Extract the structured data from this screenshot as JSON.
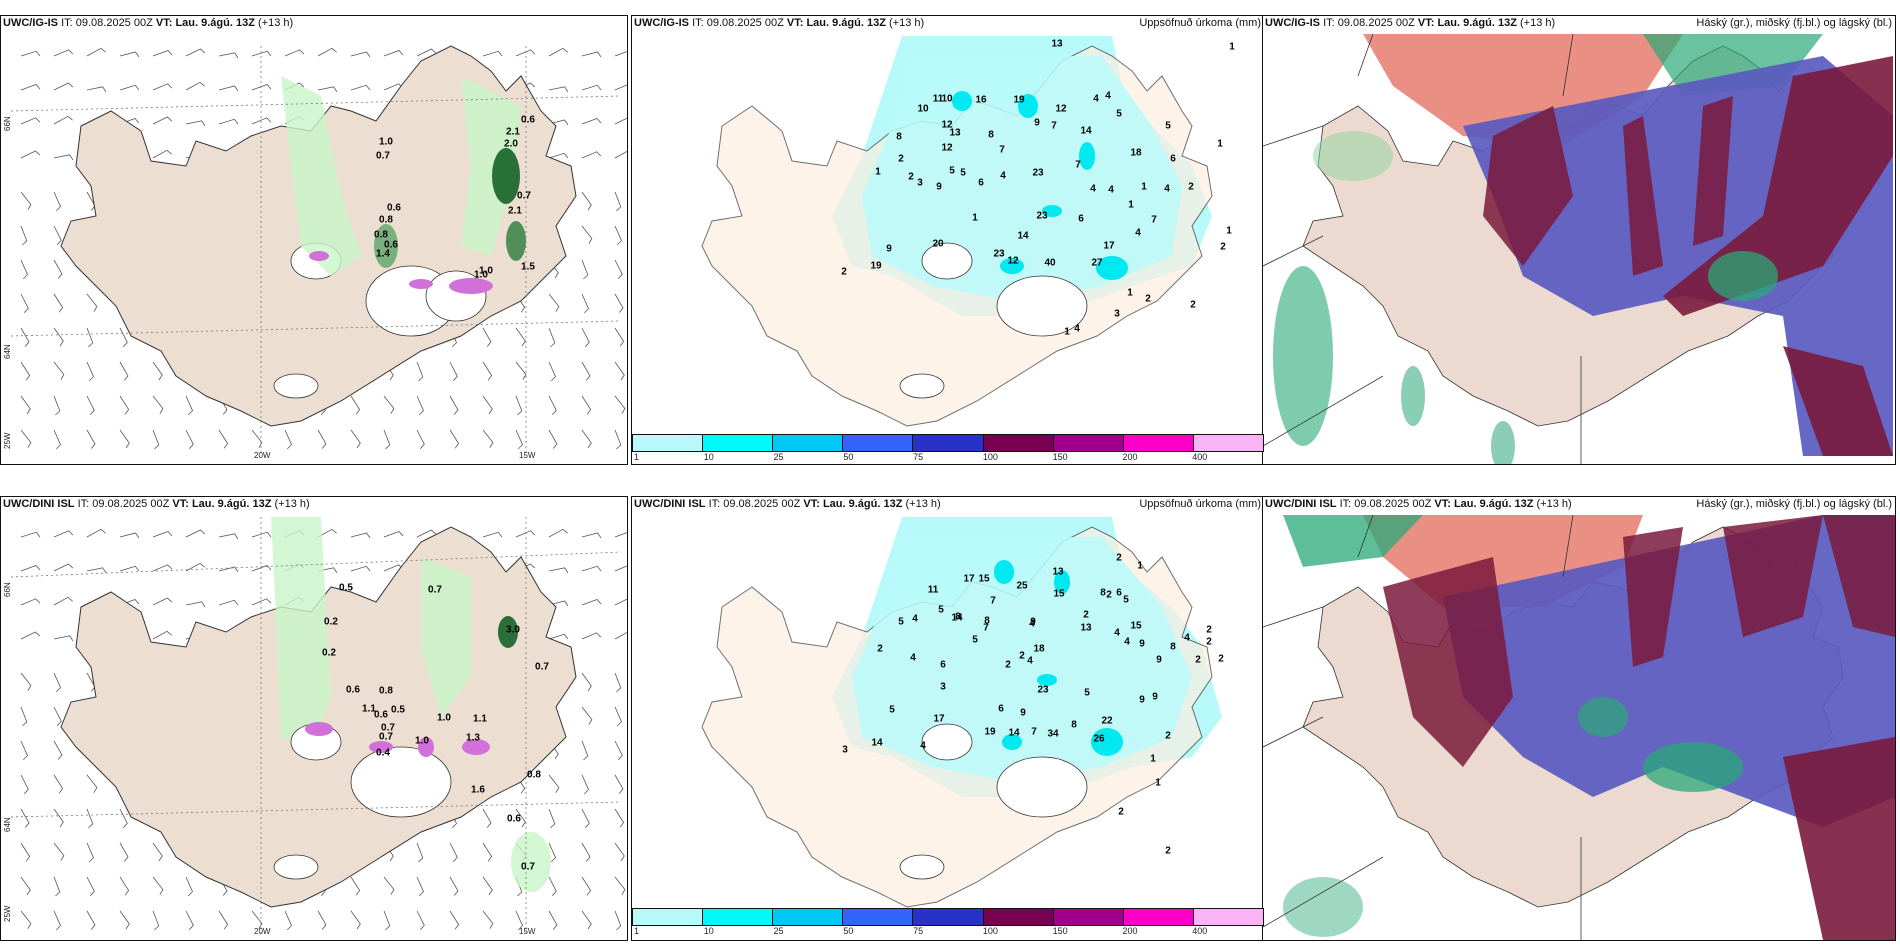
{
  "panels": [
    {
      "id": "ig-wind",
      "model": "UWC/IG-IS",
      "it_label": "IT:",
      "it_value": "09.08.2025 00Z",
      "vt_label": "VT:",
      "vt_value": "Lau. 9.ágú. 13Z",
      "lead": "(+13 h)",
      "right_title": "",
      "lat_labels": [
        "66N",
        "64N"
      ],
      "lon_labels": [
        "25W",
        "20W",
        "15W"
      ],
      "values": [
        "1.0",
        "0.7",
        "0.6",
        "2.1",
        "2.0",
        "0.6",
        "0.8",
        "0.8",
        "0.6",
        "1.4",
        "1.0",
        "0.7",
        "2.1",
        "1.5",
        "1.0"
      ]
    },
    {
      "id": "ig-precip",
      "model": "UWC/IG-IS",
      "it_label": "IT:",
      "it_value": "09.08.2025 00Z",
      "vt_label": "VT:",
      "vt_value": "Lau. 9.ágú. 13Z",
      "lead": "(+13 h)",
      "right_title": "Uppsöfnuð úrkoma (mm)",
      "values": [
        "13",
        "16",
        "19",
        "11",
        "10",
        "10",
        "12",
        "13",
        "12",
        "8",
        "8",
        "9",
        "7",
        "12",
        "14",
        "4",
        "4",
        "5",
        "2",
        "1",
        "2",
        "3",
        "5",
        "5",
        "6",
        "9",
        "4",
        "7",
        "23",
        "18",
        "7",
        "6",
        "4",
        "4",
        "1",
        "1",
        "4",
        "2",
        "5",
        "23",
        "6",
        "1",
        "1",
        "4",
        "7",
        "1",
        "2",
        "20",
        "14",
        "9",
        "19",
        "2",
        "23",
        "12",
        "40",
        "17",
        "27",
        "1",
        "2",
        "3",
        "4",
        "1",
        "1",
        "2"
      ],
      "colorbar": {
        "ticks": [
          "1",
          "10",
          "25",
          "50",
          "75",
          "100",
          "150",
          "200",
          "400"
        ],
        "colors": [
          "#b8fafa",
          "#00fafa",
          "#00c8f5",
          "#3264fa",
          "#2832c8",
          "#780050",
          "#a0008c",
          "#ff00c8",
          "#fab4f5"
        ]
      }
    },
    {
      "id": "ig-clouds",
      "model": "UWC/IG-IS",
      "it_label": "IT:",
      "it_value": "09.08.2025 00Z",
      "vt_label": "VT:",
      "vt_value": "Lau. 9.ágú. 13Z",
      "lead": "(+13 h)",
      "right_title": "Háský (gr.), miðský (fj.bl.) og lágský (bl.)"
    },
    {
      "id": "dini-wind",
      "model": "UWC/DINI ISL",
      "it_label": "IT:",
      "it_value": "09.08.2025 00Z",
      "vt_label": "VT:",
      "vt_value": "Lau. 9.ágú. 13Z",
      "lead": "(+13 h)",
      "right_title": "",
      "lat_labels": [
        "66N",
        "64N"
      ],
      "lon_labels": [
        "25W",
        "20W",
        "15W"
      ],
      "values": [
        "0.5",
        "0.7",
        "0.2",
        "0.2",
        "0.6",
        "0.8",
        "0.6",
        "1.1",
        "0.5",
        "0.7",
        "0.7",
        "1.0",
        "1.1",
        "1.3",
        "0.4",
        "1.0",
        "3.0",
        "0.7",
        "0.8",
        "1.6",
        "0.6",
        "0.7"
      ]
    },
    {
      "id": "dini-precip",
      "model": "UWC/DINI ISL",
      "it_label": "IT:",
      "it_value": "09.08.2025 00Z",
      "vt_label": "VT:",
      "vt_value": "Lau. 9.ágú. 13Z",
      "lead": "(+13 h)",
      "right_title": "Uppsöfnuð úrkoma (mm)",
      "values": [
        "13",
        "2",
        "1",
        "17",
        "15",
        "25",
        "15",
        "2",
        "8",
        "11",
        "6",
        "7",
        "5",
        "5",
        "2",
        "14",
        "13",
        "5",
        "4",
        "8",
        "8",
        "4",
        "9",
        "9",
        "15",
        "4",
        "7",
        "2",
        "4",
        "5",
        "4",
        "18",
        "8",
        "2",
        "2",
        "4",
        "6",
        "4",
        "2",
        "9",
        "2",
        "2",
        "3",
        "5",
        "23",
        "9",
        "9",
        "2",
        "6",
        "9",
        "5",
        "17",
        "19",
        "14",
        "7",
        "34",
        "8",
        "22",
        "26",
        "14",
        "4",
        "3",
        "2",
        "1",
        "1",
        "2",
        "2"
      ],
      "colorbar": {
        "ticks": [
          "1",
          "10",
          "25",
          "50",
          "75",
          "100",
          "150",
          "200",
          "400"
        ],
        "colors": [
          "#b8fafa",
          "#00fafa",
          "#00c8f5",
          "#3264fa",
          "#2832c8",
          "#780050",
          "#a0008c",
          "#ff00c8",
          "#fab4f5"
        ]
      }
    },
    {
      "id": "dini-clouds",
      "model": "UWC/DINI ISL",
      "it_label": "IT:",
      "it_value": "09.08.2025 00Z",
      "vt_label": "VT:",
      "vt_value": "Lau. 9.ágú. 13Z",
      "lead": "(+13 h)",
      "right_title": "Háský (gr.), miðský (fj.bl.) og lágský (bl.)"
    }
  ],
  "colors": {
    "land": "#ecdfd2",
    "land_precip": "#fdeee0",
    "precip_light": "#b8fafa",
    "precip_med": "#00e8f0",
    "wind_light": "#c8f5c8",
    "wind_med": "#6ec878",
    "wind_dark": "#0a5a1e",
    "cloud_high": "#2aa878",
    "cloud_mid": "#7a1a3c",
    "cloud_low": "#5a5ac0",
    "cloud_red": "#e06050"
  }
}
